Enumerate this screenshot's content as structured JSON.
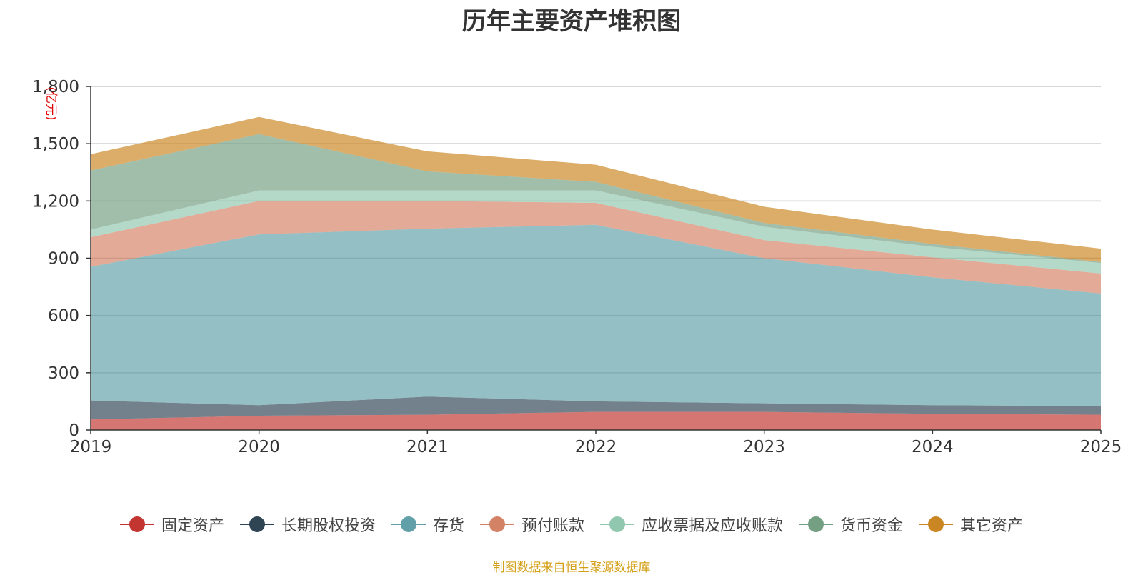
{
  "chart_data": {
    "type": "area",
    "stacked": true,
    "title": "历年主要资产堆积图",
    "ylabel": "(亿元)",
    "xlabel": "",
    "x": [
      "2019",
      "2020",
      "2021",
      "2022",
      "2023",
      "2024",
      "2025"
    ],
    "ylim": [
      0,
      1800
    ],
    "yticks": [
      "0",
      "300",
      "600",
      "900",
      "1,200",
      "1,500",
      "1,800"
    ],
    "grid": true,
    "legend_position": "bottom",
    "series": [
      {
        "name": "固定资产",
        "color": "#c23531",
        "values": [
          55,
          75,
          80,
          95,
          95,
          85,
          80
        ]
      },
      {
        "name": "长期股权投资",
        "color": "#2f4554",
        "values": [
          100,
          55,
          95,
          55,
          45,
          45,
          45
        ]
      },
      {
        "name": "存货",
        "color": "#61a0a8",
        "values": [
          700,
          895,
          880,
          925,
          760,
          670,
          590
        ]
      },
      {
        "name": "预付账款",
        "color": "#d48265",
        "values": [
          155,
          175,
          145,
          115,
          95,
          105,
          105
        ]
      },
      {
        "name": "应收票据及应收账款",
        "color": "#91c7ae",
        "values": [
          40,
          55,
          55,
          65,
          70,
          55,
          55
        ]
      },
      {
        "name": "货币资金",
        "color": "#749f83",
        "values": [
          310,
          295,
          100,
          45,
          20,
          15,
          5
        ]
      },
      {
        "name": "其它资产",
        "color": "#ca8622",
        "values": [
          85,
          90,
          105,
          90,
          85,
          75,
          70
        ]
      }
    ]
  },
  "source_note": "制图数据来自恒生聚源数据库"
}
